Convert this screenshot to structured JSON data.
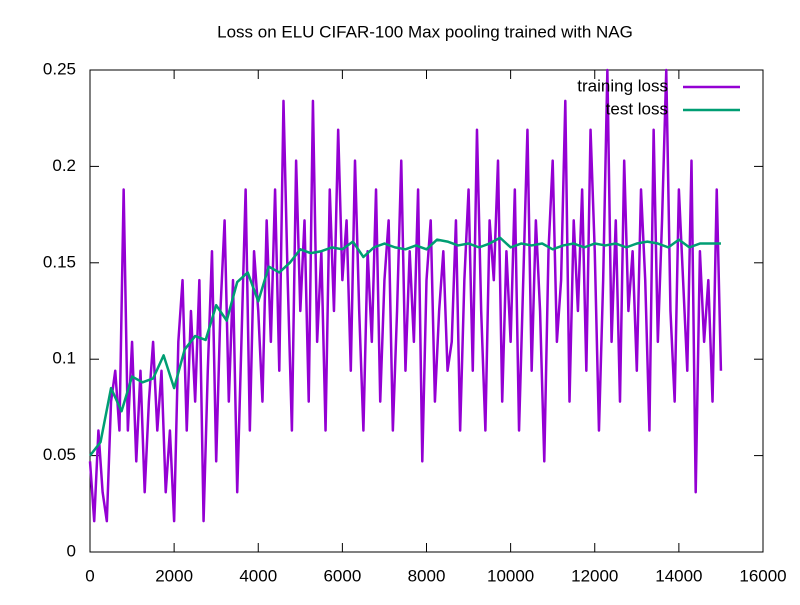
{
  "chart_data": {
    "type": "line",
    "title": "Loss on ELU CIFAR-100 Max pooling trained with NAG",
    "xlim": [
      0,
      16000
    ],
    "xticks": [
      0,
      2000,
      4000,
      6000,
      8000,
      10000,
      12000,
      14000,
      16000
    ],
    "ylim": [
      0,
      0.25
    ],
    "yticks": [
      0,
      0.05,
      0.1,
      0.15,
      0.2,
      0.25
    ],
    "legend": "top-right",
    "series": [
      {
        "name": "training loss",
        "color": "#9400d3",
        "x": [
          0,
          100,
          200,
          300,
          400,
          500,
          600,
          700,
          800,
          900,
          1000,
          1100,
          1200,
          1300,
          1400,
          1500,
          1600,
          1700,
          1800,
          1900,
          2000,
          2100,
          2200,
          2300,
          2400,
          2500,
          2600,
          2700,
          2800,
          2900,
          3000,
          3100,
          3200,
          3300,
          3400,
          3500,
          3600,
          3700,
          3800,
          3900,
          4000,
          4100,
          4200,
          4300,
          4400,
          4500,
          4600,
          4700,
          4800,
          4900,
          5000,
          5100,
          5200,
          5300,
          5400,
          5500,
          5600,
          5700,
          5800,
          5900,
          6000,
          6100,
          6200,
          6300,
          6400,
          6500,
          6600,
          6700,
          6800,
          6900,
          7000,
          7100,
          7200,
          7300,
          7400,
          7500,
          7600,
          7700,
          7800,
          7900,
          8000,
          8100,
          8200,
          8300,
          8400,
          8500,
          8600,
          8700,
          8800,
          8900,
          9000,
          9100,
          9200,
          9300,
          9400,
          9500,
          9600,
          9700,
          9800,
          9900,
          10000,
          10100,
          10200,
          10300,
          10400,
          10500,
          10600,
          10700,
          10800,
          10900,
          11000,
          11100,
          11200,
          11300,
          11400,
          11500,
          11600,
          11700,
          11800,
          11900,
          12000,
          12100,
          12200,
          12300,
          12400,
          12500,
          12600,
          12700,
          12800,
          12900,
          13000,
          13100,
          13200,
          13300,
          13400,
          13500,
          13600,
          13700,
          13800,
          13900,
          14000,
          14100,
          14200,
          14300,
          14400,
          14500,
          14600,
          14700,
          14800,
          14900,
          15000
        ],
        "values": [
          0.047,
          0.016,
          0.063,
          0.031,
          0.016,
          0.078,
          0.094,
          0.063,
          0.188,
          0.063,
          0.109,
          0.047,
          0.094,
          0.031,
          0.078,
          0.109,
          0.063,
          0.094,
          0.031,
          0.063,
          0.016,
          0.109,
          0.141,
          0.063,
          0.125,
          0.078,
          0.141,
          0.016,
          0.094,
          0.156,
          0.047,
          0.125,
          0.172,
          0.078,
          0.141,
          0.031,
          0.109,
          0.188,
          0.063,
          0.156,
          0.125,
          0.078,
          0.172,
          0.109,
          0.188,
          0.094,
          0.234,
          0.141,
          0.063,
          0.203,
          0.125,
          0.172,
          0.078,
          0.234,
          0.109,
          0.156,
          0.063,
          0.188,
          0.125,
          0.219,
          0.141,
          0.172,
          0.094,
          0.203,
          0.125,
          0.063,
          0.156,
          0.109,
          0.188,
          0.078,
          0.141,
          0.172,
          0.063,
          0.125,
          0.203,
          0.094,
          0.156,
          0.109,
          0.188,
          0.047,
          0.141,
          0.172,
          0.078,
          0.125,
          0.156,
          0.094,
          0.109,
          0.172,
          0.063,
          0.141,
          0.188,
          0.094,
          0.219,
          0.125,
          0.063,
          0.172,
          0.141,
          0.203,
          0.078,
          0.156,
          0.109,
          0.188,
          0.063,
          0.141,
          0.219,
          0.094,
          0.172,
          0.125,
          0.047,
          0.156,
          0.203,
          0.109,
          0.141,
          0.234,
          0.078,
          0.172,
          0.125,
          0.188,
          0.094,
          0.219,
          0.156,
          0.063,
          0.141,
          0.25,
          0.109,
          0.172,
          0.078,
          0.203,
          0.125,
          0.156,
          0.094,
          0.188,
          0.141,
          0.063,
          0.219,
          0.109,
          0.172,
          0.25,
          0.125,
          0.078,
          0.188,
          0.141,
          0.094,
          0.203,
          0.031,
          0.156,
          0.109,
          0.141,
          0.078,
          0.188,
          0.094
        ]
      },
      {
        "name": "test loss",
        "color": "#009e73",
        "x": [
          0,
          250,
          500,
          750,
          1000,
          1250,
          1500,
          1750,
          2000,
          2250,
          2500,
          2750,
          3000,
          3250,
          3500,
          3750,
          4000,
          4250,
          4500,
          4750,
          5000,
          5250,
          5500,
          5750,
          6000,
          6250,
          6500,
          6750,
          7000,
          7250,
          7500,
          7750,
          8000,
          8250,
          8500,
          8750,
          9000,
          9250,
          9500,
          9750,
          10000,
          10250,
          10500,
          10750,
          11000,
          11250,
          11500,
          11750,
          12000,
          12250,
          12500,
          12750,
          13000,
          13250,
          13500,
          13750,
          14000,
          14250,
          14500,
          14750,
          15000
        ],
        "values": [
          0.05,
          0.057,
          0.085,
          0.073,
          0.091,
          0.088,
          0.09,
          0.102,
          0.085,
          0.105,
          0.112,
          0.11,
          0.128,
          0.12,
          0.14,
          0.145,
          0.13,
          0.148,
          0.145,
          0.15,
          0.157,
          0.155,
          0.156,
          0.158,
          0.157,
          0.161,
          0.153,
          0.158,
          0.16,
          0.158,
          0.157,
          0.159,
          0.157,
          0.162,
          0.161,
          0.159,
          0.16,
          0.158,
          0.16,
          0.163,
          0.158,
          0.16,
          0.159,
          0.16,
          0.157,
          0.159,
          0.16,
          0.158,
          0.16,
          0.159,
          0.16,
          0.158,
          0.16,
          0.161,
          0.16,
          0.158,
          0.162,
          0.158,
          0.16,
          0.16,
          0.16
        ]
      }
    ]
  }
}
